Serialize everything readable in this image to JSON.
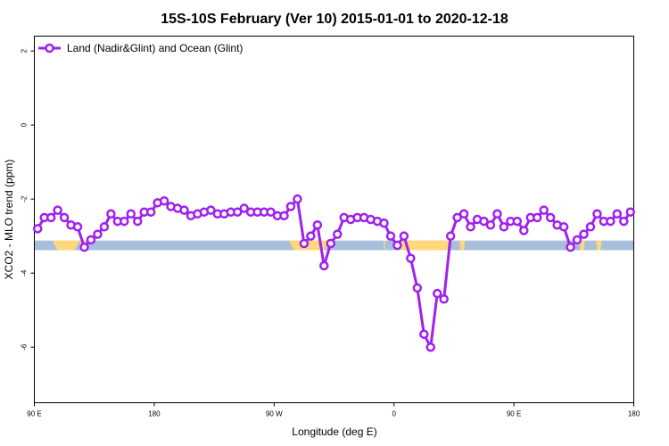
{
  "chart_data": {
    "type": "line",
    "title": "15S-10S February (Ver 10)   2015-01-01 to 2020-12-18",
    "xlabel": "Longitude (deg E)",
    "ylabel": "XCO2 - MLO trend (ppm)",
    "xlim": [
      90,
      450
    ],
    "ylim": [
      -7.5,
      2.4
    ],
    "x_ticks": [
      {
        "value": 90,
        "label": "90 E"
      },
      {
        "value": 162,
        "label": "180"
      },
      {
        "value": 234,
        "label": "90 W"
      },
      {
        "value": 306,
        "label": "0"
      },
      {
        "value": 378,
        "label": "90 E"
      },
      {
        "value": 450,
        "label": "180"
      }
    ],
    "y_ticks": [
      {
        "value": 2,
        "label": "2"
      },
      {
        "value": 0,
        "label": "0"
      },
      {
        "value": -2,
        "label": "-2"
      },
      {
        "value": -4,
        "label": "-4"
      },
      {
        "value": -6,
        "label": "-6"
      }
    ],
    "grid": false,
    "legend_position": "top-left",
    "series": [
      {
        "name": "Land (Nadir&Glint) and Ocean (Glint)",
        "color": "#a020f0",
        "marker": "open-circle",
        "x": [
          92,
          96,
          100,
          104,
          108,
          112,
          116,
          120,
          124,
          128,
          132,
          136,
          140,
          144,
          148,
          152,
          156,
          160,
          164,
          168,
          172,
          176,
          180,
          184,
          188,
          192,
          196,
          200,
          204,
          208,
          212,
          216,
          220,
          224,
          228,
          232,
          236,
          240,
          244,
          248,
          252,
          256,
          260,
          264,
          268,
          272,
          276,
          280,
          284,
          288,
          292,
          296,
          300,
          304,
          308,
          312,
          316,
          320,
          324,
          328,
          332,
          336,
          340,
          344,
          348,
          352,
          356,
          360,
          364,
          368,
          372,
          376,
          380,
          384,
          388,
          392,
          396,
          400,
          404,
          408,
          412,
          416,
          420,
          424,
          428,
          432,
          436,
          440,
          444,
          448
        ],
        "y": [
          -2.8,
          -2.5,
          -2.5,
          -2.3,
          -2.5,
          -2.7,
          -2.75,
          -3.3,
          -3.1,
          -2.95,
          -2.75,
          -2.4,
          -2.6,
          -2.6,
          -2.4,
          -2.6,
          -2.35,
          -2.35,
          -2.1,
          -2.05,
          -2.2,
          -2.25,
          -2.3,
          -2.45,
          -2.4,
          -2.35,
          -2.3,
          -2.4,
          -2.4,
          -2.35,
          -2.35,
          -2.25,
          -2.35,
          -2.35,
          -2.35,
          -2.35,
          -2.45,
          -2.45,
          -2.2,
          -2.0,
          -3.2,
          -3.0,
          -2.7,
          -3.8,
          -3.2,
          -2.95,
          -2.5,
          -2.55,
          -2.5,
          -2.5,
          -2.55,
          -2.6,
          -2.65,
          -3.0,
          -3.25,
          -3.0,
          -3.6,
          -4.4,
          -5.65,
          -6.0,
          -4.55,
          -4.7,
          -3.0,
          -2.5,
          -2.4,
          -2.75,
          -2.55,
          -2.6,
          -2.7,
          -2.4,
          -2.75,
          -2.6,
          -2.6,
          -2.85,
          -2.5,
          -2.5,
          -2.3,
          -2.5,
          -2.7,
          -2.75,
          -3.3,
          -3.1,
          -2.95,
          -2.75,
          -2.4,
          -2.6,
          -2.6,
          -2.4,
          -2.6,
          -2.35
        ]
      }
    ],
    "background_bands": {
      "ocean_color": "#a8bfdc",
      "land_color": "#ffd87a",
      "y_range": [
        -3.38,
        -3.12
      ],
      "land_segments": [
        [
          104,
          114
        ],
        [
          118,
          120
        ],
        [
          246,
          264
        ],
        [
          300,
          300.5
        ],
        [
          310,
          338
        ],
        [
          346,
          348
        ],
        [
          418,
          420
        ],
        [
          428,
          430
        ]
      ]
    }
  }
}
